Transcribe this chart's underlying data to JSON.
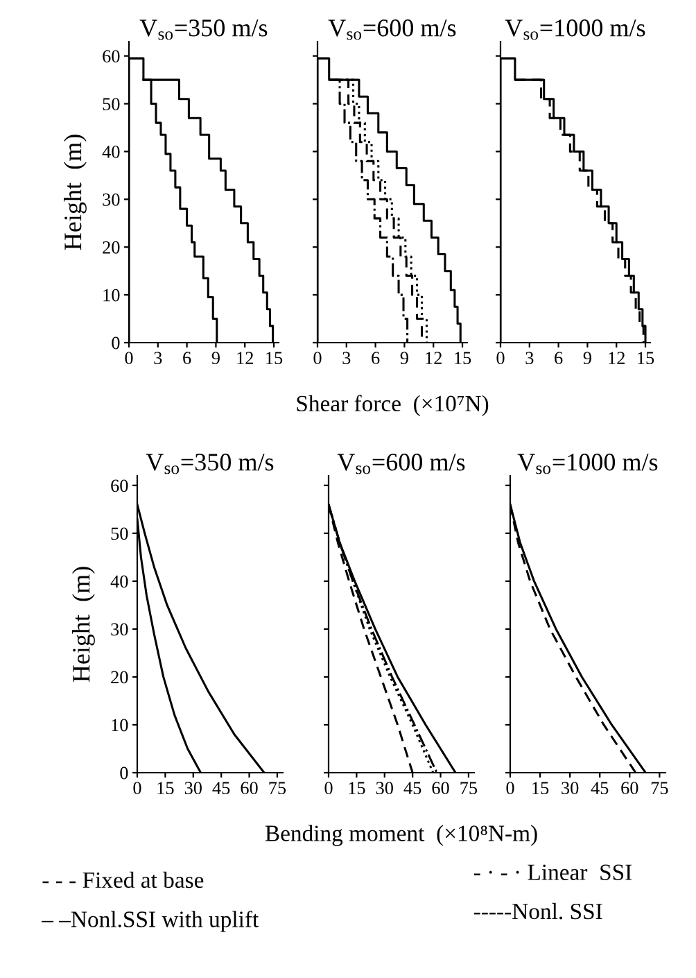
{
  "chart_data": [
    {
      "type": "line",
      "title": "V$_{so}$=350 m/s",
      "ylabel": "Height  (m)",
      "xlim": [
        0,
        15.5
      ],
      "xticks": [
        0,
        3,
        6,
        9,
        12,
        15
      ],
      "ylim": [
        0,
        63
      ],
      "yticks": [
        0,
        10,
        20,
        30,
        40,
        50,
        60
      ],
      "series": [
        {
          "color": "#000000",
          "line_style": "solid",
          "x": [
            0,
            0,
            1.5,
            1.5,
            5.2,
            5.2,
            6.2,
            6.2,
            7.4,
            7.4,
            8.3,
            8.3,
            9.5,
            9.5,
            10,
            10,
            10.9,
            10.9,
            11.6,
            11.6,
            12.3,
            12.3,
            12.9,
            12.9,
            13.5,
            13.5,
            13.9,
            13.9,
            14.3,
            14.3,
            14.6,
            14.6,
            14.9,
            14.9
          ],
          "values": [
            0,
            59.5,
            59.5,
            55,
            55,
            51,
            51,
            47,
            47,
            43.5,
            43.5,
            38.5,
            38.5,
            36,
            36,
            32,
            32,
            28.5,
            28.5,
            25,
            25,
            21,
            21,
            17.5,
            17.5,
            14,
            14,
            10.5,
            10.5,
            7,
            7,
            3.5,
            3.5,
            0
          ]
        },
        {
          "color": "#000000",
          "line_style": "solid",
          "x": [
            1.5,
            2.3,
            2.3,
            2.8,
            2.8,
            3.3,
            3.3,
            3.8,
            3.8,
            4.3,
            4.3,
            4.8,
            4.8,
            5.3,
            5.3,
            6,
            6,
            6.5,
            6.5,
            6.8,
            6.8,
            7.7,
            7.7,
            8.2,
            8.2,
            8.7,
            8.7,
            9.1,
            9.1
          ],
          "values": [
            55,
            55,
            50,
            50,
            46,
            46,
            43.5,
            43.5,
            39.5,
            39.5,
            36,
            36,
            32.5,
            32.5,
            28,
            28,
            24.5,
            24.5,
            21,
            21,
            18,
            18,
            13.5,
            13.5,
            9.5,
            9.5,
            5,
            5,
            0
          ]
        }
      ]
    },
    {
      "type": "line",
      "title": "V$_{so}$=600 m/s",
      "xlabel": "Shear force  (×10⁷N)",
      "xlim": [
        0,
        15.5
      ],
      "xticks": [
        0,
        3,
        6,
        9,
        12,
        15
      ],
      "ylim": [
        0,
        63
      ],
      "yticks": [
        0,
        10,
        20,
        30,
        40,
        50,
        60
      ],
      "tick_labels": "x",
      "series": [
        {
          "color": "#000000",
          "line_style": "solid",
          "x": [
            0,
            0,
            1.2,
            1.2,
            4.3,
            4.3,
            5.2,
            5.2,
            6.3,
            6.3,
            7.2,
            7.2,
            8.2,
            8.2,
            9.2,
            9.2,
            10,
            10,
            11,
            11,
            11.8,
            11.8,
            12.5,
            12.5,
            13.2,
            13.2,
            13.8,
            13.8,
            14.2,
            14.2,
            14.5,
            14.5,
            14.8,
            14.8
          ],
          "values": [
            0,
            59.5,
            59.5,
            55,
            55,
            51.5,
            51.5,
            48,
            48,
            44,
            44,
            40,
            40,
            36.5,
            36.5,
            33,
            33,
            29,
            29,
            25.5,
            25.5,
            22,
            22,
            18.5,
            18.5,
            15,
            15,
            11,
            11,
            7.5,
            7.5,
            4,
            4,
            0
          ]
        },
        {
          "color": "#000000",
          "line_style": "dashdot",
          "x": [
            1.2,
            2.3,
            2.3,
            2.8,
            2.8,
            3.4,
            3.4,
            4,
            4,
            4.6,
            4.6,
            5.2,
            5.2,
            5.9,
            5.9,
            6.5,
            6.5,
            7.2,
            7.2,
            7.8,
            7.8,
            8.4,
            8.4,
            8.9,
            8.9,
            9.3,
            9.3
          ],
          "values": [
            55,
            55,
            50,
            50,
            46,
            46,
            42,
            42,
            38,
            38,
            34,
            34,
            30,
            30,
            26,
            26,
            22,
            22,
            18,
            18,
            14,
            14,
            10,
            10,
            5,
            5,
            0
          ]
        },
        {
          "color": "#000000",
          "line_style": "dashed",
          "x": [
            1.2,
            3.2,
            3.2,
            3.8,
            3.8,
            4.4,
            4.4,
            5.1,
            5.1,
            5.8,
            5.8,
            6.5,
            6.5,
            7.2,
            7.2,
            7.9,
            7.9,
            8.6,
            8.6,
            9.2,
            9.2,
            9.8,
            9.8,
            10.3,
            10.3,
            10.8,
            10.8
          ],
          "values": [
            55,
            55,
            50,
            50,
            46,
            46,
            42,
            42,
            38,
            38,
            34,
            34,
            30,
            30,
            26,
            26,
            22,
            22,
            18,
            18,
            14,
            14,
            10,
            10,
            5,
            5,
            0
          ]
        },
        {
          "color": "#000000",
          "line_style": "dotted",
          "x": [
            1.2,
            3.7,
            3.7,
            4.3,
            4.3,
            4.9,
            4.9,
            5.6,
            5.6,
            6.3,
            6.3,
            7,
            7,
            7.7,
            7.7,
            8.4,
            8.4,
            9.1,
            9.1,
            9.7,
            9.7,
            10.3,
            10.3,
            10.8,
            10.8,
            11.3,
            11.3
          ],
          "values": [
            55,
            55,
            50,
            50,
            46,
            46,
            42,
            42,
            38,
            38,
            34,
            34,
            30,
            30,
            26,
            26,
            22,
            22,
            18,
            18,
            14,
            14,
            10,
            10,
            5,
            5,
            0
          ]
        }
      ]
    },
    {
      "type": "line",
      "title": "V$_{so}$=1000 m/s",
      "xlim": [
        0,
        15.5
      ],
      "xticks": [
        0,
        3,
        6,
        9,
        12,
        15
      ],
      "ylim": [
        0,
        63
      ],
      "yticks": [
        0,
        10,
        20,
        30,
        40,
        50,
        60
      ],
      "tick_labels": "x",
      "series": [
        {
          "color": "#000000",
          "line_style": "solid",
          "x": [
            0,
            0,
            1.5,
            1.5,
            4.5,
            4.5,
            5.5,
            5.5,
            6.6,
            6.6,
            7.6,
            7.6,
            8.6,
            8.6,
            9.5,
            9.5,
            10.4,
            10.4,
            11.2,
            11.2,
            12,
            12,
            12.6,
            12.6,
            13.3,
            13.3,
            13.8,
            13.8,
            14.3,
            14.3,
            14.7,
            14.7,
            15,
            15
          ],
          "values": [
            0,
            59.5,
            59.5,
            55,
            55,
            51,
            51,
            47,
            47,
            43.5,
            43.5,
            40,
            40,
            36,
            36,
            32,
            32,
            28.5,
            28.5,
            25,
            25,
            21,
            21,
            17.5,
            17.5,
            14,
            14,
            10.5,
            10.5,
            7,
            7,
            3.5,
            3.5,
            0
          ]
        },
        {
          "color": "#000000",
          "line_style": "dashed",
          "x": [
            1.5,
            4.2,
            4.2,
            5.1,
            5.1,
            6.2,
            6.2,
            7.2,
            7.2,
            8.2,
            8.2,
            9.1,
            9.1,
            10,
            10,
            10.8,
            10.8,
            11.6,
            11.6,
            12.2,
            12.2,
            12.9,
            12.9,
            13.5,
            13.5,
            14,
            14,
            14.4,
            14.4,
            14.8,
            14.8
          ],
          "values": [
            55,
            55,
            51,
            51,
            47,
            47,
            43.5,
            43.5,
            40,
            40,
            36,
            36,
            32,
            32,
            28.5,
            28.5,
            25,
            25,
            21,
            21,
            17.5,
            17.5,
            14,
            14,
            10.5,
            10.5,
            7,
            7,
            3.5,
            3.5,
            0
          ]
        }
      ]
    },
    {
      "type": "line",
      "title": "V$_{so}$=350 m/s",
      "ylabel": "Height  (m)",
      "xlim": [
        0,
        78
      ],
      "xticks": [
        0,
        15,
        30,
        45,
        60,
        75
      ],
      "ylim": [
        0,
        62
      ],
      "yticks": [
        0,
        10,
        20,
        30,
        40,
        50,
        60
      ],
      "series": [
        {
          "color": "#000000",
          "line_style": "solid",
          "x": [
            0,
            4,
            9,
            16,
            26,
            38,
            52,
            68
          ],
          "values": [
            56,
            50,
            43,
            35,
            26,
            17,
            8,
            0
          ]
        },
        {
          "color": "#000000",
          "line_style": "solid",
          "x": [
            0,
            2,
            5,
            9,
            14,
            20,
            27,
            34
          ],
          "values": [
            53,
            45,
            37,
            29,
            20,
            12,
            5,
            0
          ]
        }
      ]
    },
    {
      "type": "line",
      "title": "V$_{so}$=600 m/s",
      "xlabel": "Bending moment  (×10⁸N-m)",
      "xlim": [
        0,
        78
      ],
      "xticks": [
        0,
        15,
        30,
        45,
        60,
        75
      ],
      "ylim": [
        0,
        62
      ],
      "yticks": [
        0,
        10,
        20,
        30,
        40,
        50,
        60
      ],
      "tick_labels": "x",
      "series": [
        {
          "color": "#000000",
          "line_style": "solid",
          "x": [
            0,
            6,
            14,
            25,
            37,
            52,
            68
          ],
          "values": [
            56,
            48,
            40,
            30,
            20,
            10,
            0
          ]
        },
        {
          "color": "#000000",
          "line_style": "dashed",
          "x": [
            0,
            5,
            11,
            19,
            28,
            37,
            45
          ],
          "values": [
            56,
            48,
            40,
            30,
            20,
            10,
            0
          ]
        },
        {
          "color": "#000000",
          "line_style": "dotted",
          "x": [
            0,
            6,
            13,
            22,
            33,
            45,
            56
          ],
          "values": [
            56,
            48,
            40,
            30,
            20,
            10,
            0
          ]
        },
        {
          "color": "#000000",
          "line_style": "dashdot",
          "x": [
            0,
            6,
            13,
            23,
            34,
            46,
            58
          ],
          "values": [
            56,
            48,
            40,
            30,
            20,
            10,
            0
          ]
        }
      ]
    },
    {
      "type": "line",
      "title": "V$_{so}$=1000 m/s",
      "xlim": [
        0,
        78
      ],
      "xticks": [
        0,
        15,
        30,
        45,
        60,
        75
      ],
      "ylim": [
        0,
        62
      ],
      "yticks": [
        0,
        10,
        20,
        30,
        40,
        50,
        60
      ],
      "tick_labels": "x",
      "series": [
        {
          "color": "#000000",
          "line_style": "solid",
          "x": [
            0,
            5,
            12,
            23,
            36,
            51,
            68
          ],
          "values": [
            56,
            48,
            40,
            30,
            20,
            10,
            0
          ]
        },
        {
          "color": "#000000",
          "line_style": "dashed",
          "x": [
            0,
            4,
            10,
            20,
            33,
            47,
            63
          ],
          "values": [
            56,
            48,
            40,
            30,
            20,
            10,
            0
          ]
        }
      ]
    },
    {
      "type": "other",
      "annotations": [
        "- - - Fixed at base",
        "– –Nonl.SSI with uplift",
        "- · - · Linear  SSI",
        "-----Nonl. SSI"
      ]
    }
  ]
}
